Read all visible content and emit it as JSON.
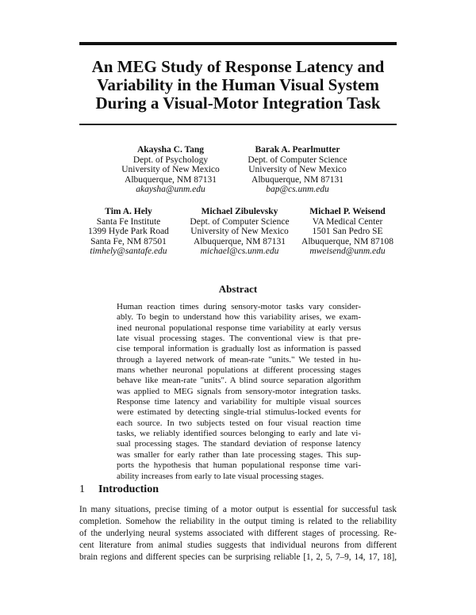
{
  "title_lines": [
    "An MEG Study of Response Latency and",
    "Variability in the Human Visual System",
    "During a Visual-Motor Integration Task"
  ],
  "authors": [
    {
      "name": "Akaysha C. Tang",
      "lines": [
        "Dept. of Psychology",
        "University of New Mexico",
        "Albuquerque, NM 87131"
      ],
      "email": "akaysha@unm.edu"
    },
    {
      "name": "Barak A. Pearlmutter",
      "lines": [
        "Dept. of Computer Science",
        "University of New Mexico",
        "Albuquerque, NM 87131"
      ],
      "email": "bap@cs.unm.edu"
    },
    {
      "name": "Tim A. Hely",
      "lines": [
        "Santa Fe Institute",
        "1399 Hyde Park Road",
        "Santa Fe, NM 87501"
      ],
      "email": "timhely@santafe.edu"
    },
    {
      "name": "Michael Zibulevsky",
      "lines": [
        "Dept. of Computer Science",
        "University of New Mexico",
        "Albuquerque, NM 87131"
      ],
      "email": "michael@cs.unm.edu"
    },
    {
      "name": "Michael P. Weisend",
      "lines": [
        "VA Medical Center",
        "1501 San Pedro SE",
        "Albuquerque, NM 87108"
      ],
      "email": "mweisend@unm.edu"
    }
  ],
  "abstract": {
    "heading": "Abstract",
    "lines": [
      "Human reaction times during sensory-motor tasks vary consider-",
      "ably. To begin to understand how this variability arises, we exam-",
      "ined neuronal populational response time variability at early versus",
      "late visual processing stages. The conventional view is that pre-",
      "cise temporal information is gradually lost as information is passed",
      "through a layered network of mean-rate \"units.\" We tested in hu-",
      "mans whether neuronal populations at different processing stages",
      "behave like mean-rate \"units\". A blind source separation algorithm",
      "was applied to MEG signals from sensory-motor integration tasks.",
      "Response time latency and variability for multiple visual sources",
      "were estimated by detecting single-trial stimulus-locked events for",
      "each source. In two subjects tested on four visual reaction time",
      "tasks, we reliably identified sources belonging to early and late vi-",
      "sual processing stages. The standard deviation of response latency",
      "was smaller for early rather than late processing stages. This sup-",
      "ports the hypothesis that human populational response time vari-",
      "ability increases from early to late visual processing stages."
    ]
  },
  "section": {
    "number": "1",
    "title": "Introduction",
    "lines": [
      "In many situations, precise timing of a motor output is essential for successful task",
      "completion. Somehow the reliability in the output timing is related to the reliability",
      "of the underlying neural systems associated with different stages of processing. Re-",
      "cent literature from animal studies suggests that individual neurons from different",
      "brain regions and different species can be surprising reliable [1, 2, 5, 7–9, 14, 17, 18],"
    ]
  }
}
